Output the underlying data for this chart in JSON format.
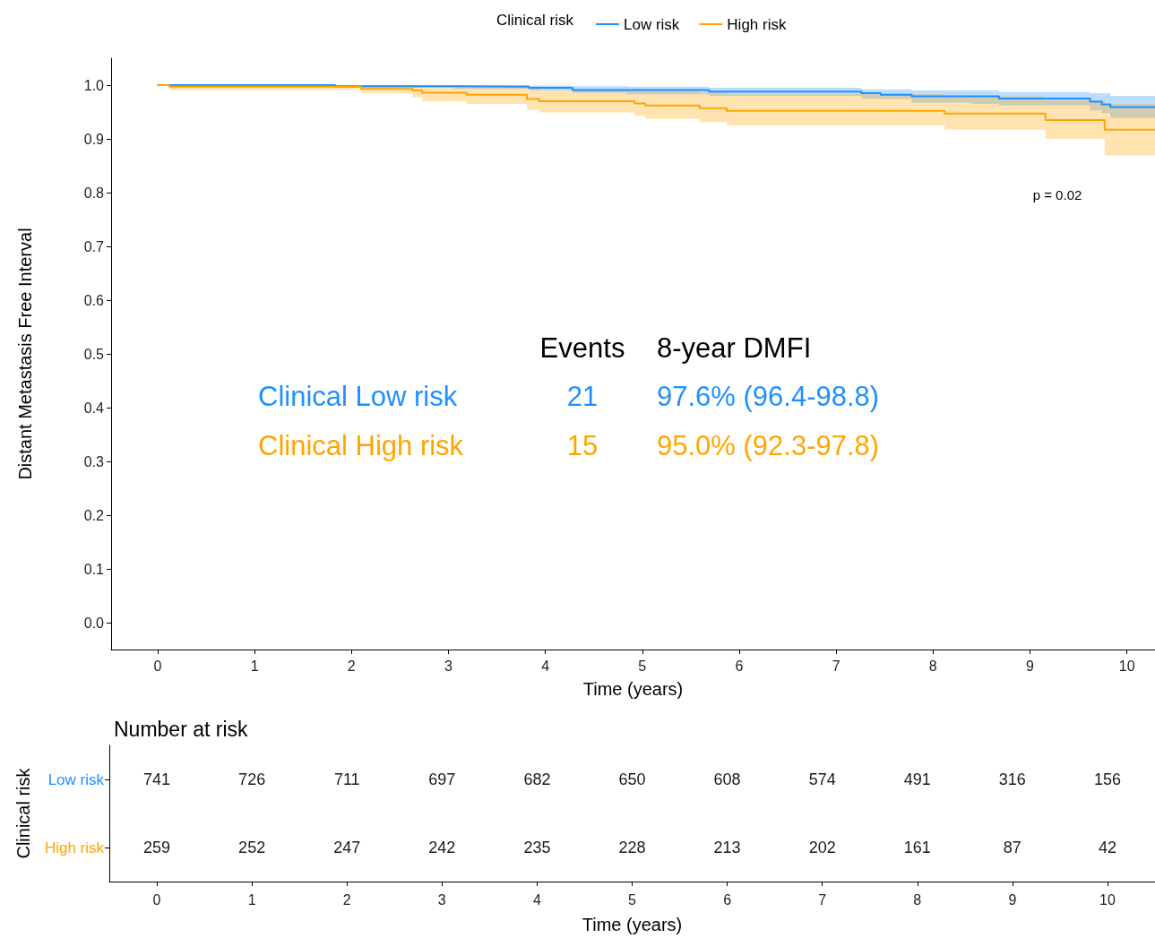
{
  "chart_data": [
    {
      "type": "step",
      "xlabel": "Time (years)",
      "ylabel": "Distant Metastasis Free Interval",
      "legend_title": "Clinical risk",
      "legend": "top",
      "annotations": [
        "p = 0.02",
        "Events",
        "8-year DMFI",
        "Clinical Low risk",
        "21",
        "97.6% (96.4-98.8)",
        "Clinical High risk",
        "15",
        "95.0% (92.3-97.8)"
      ],
      "xlim": [
        -0.48,
        10.29
      ],
      "xticks": [
        0,
        1,
        2,
        3,
        4,
        5,
        6,
        7,
        8,
        9,
        10
      ],
      "ylim": [
        -0.05,
        1.05
      ],
      "yticks": [
        {
          "value": 0,
          "label": "0.0"
        },
        0.1,
        0.2,
        0.3,
        0.4,
        0.5,
        0.6,
        0.7,
        0.8,
        0.9,
        {
          "value": 1,
          "label": "1.0"
        }
      ],
      "series": [
        {
          "name": "Low risk",
          "color": "#1e90ff",
          "x": [
            0,
            0.13,
            1.83,
            3.05,
            3.83,
            4.28,
            4.84,
            5.69,
            7.26,
            7.46,
            7.78,
            8.4,
            8.68,
            9.62,
            9.74,
            9.83,
            10.29
          ],
          "values": [
            1.0,
            1.0,
            0.998,
            0.997,
            0.995,
            0.991,
            0.991,
            0.988,
            0.985,
            0.982,
            0.979,
            0.979,
            0.975,
            0.969,
            0.964,
            0.959,
            0.959
          ],
          "lower": [
            1.0,
            0.998,
            0.995,
            0.993,
            0.99,
            0.986,
            0.983,
            0.98,
            0.975,
            0.974,
            0.967,
            0.965,
            0.962,
            0.953,
            0.948,
            0.939,
            0.939
          ],
          "upper": [
            1.0,
            1.0,
            1.0,
            1.0,
            0.999,
            0.998,
            0.997,
            0.995,
            0.992,
            0.992,
            0.99,
            0.99,
            0.987,
            0.985,
            0.985,
            0.98,
            0.98
          ]
        },
        {
          "name": "High risk",
          "color": "#ffa500",
          "x": [
            0,
            0.12,
            2.1,
            2.63,
            2.73,
            3.19,
            3.81,
            3.94,
            4.92,
            5.03,
            5.59,
            5.87,
            8.12,
            9.16,
            9.77,
            10.29
          ],
          "values": [
            1.0,
            0.997,
            0.993,
            0.99,
            0.986,
            0.982,
            0.974,
            0.97,
            0.966,
            0.962,
            0.957,
            0.952,
            0.947,
            0.935,
            0.917,
            0.917
          ],
          "lower": [
            1.0,
            0.991,
            0.985,
            0.977,
            0.97,
            0.965,
            0.954,
            0.949,
            0.943,
            0.937,
            0.931,
            0.925,
            0.917,
            0.9,
            0.869,
            0.869
          ],
          "upper": [
            1.0,
            1.0,
            1.0,
            1.0,
            1.0,
            0.999,
            0.994,
            0.991,
            0.99,
            0.989,
            0.986,
            0.983,
            0.979,
            0.972,
            0.965,
            0.965
          ]
        }
      ]
    },
    {
      "type": "heatmap",
      "title": "Number at risk",
      "xlabel": "Time (years)",
      "ylabel": "Clinical risk",
      "categories": [
        "0",
        "1",
        "2",
        "3",
        "4",
        "5",
        "6",
        "7",
        "8",
        "9",
        "10"
      ],
      "y_categories": [
        "Low risk",
        "High risk"
      ],
      "cells": [
        [
          741,
          726,
          711,
          697,
          682,
          650,
          608,
          574,
          491,
          316,
          156
        ],
        [
          259,
          252,
          247,
          242,
          235,
          228,
          213,
          202,
          161,
          87,
          42
        ]
      ],
      "data_labels": true
    }
  ]
}
